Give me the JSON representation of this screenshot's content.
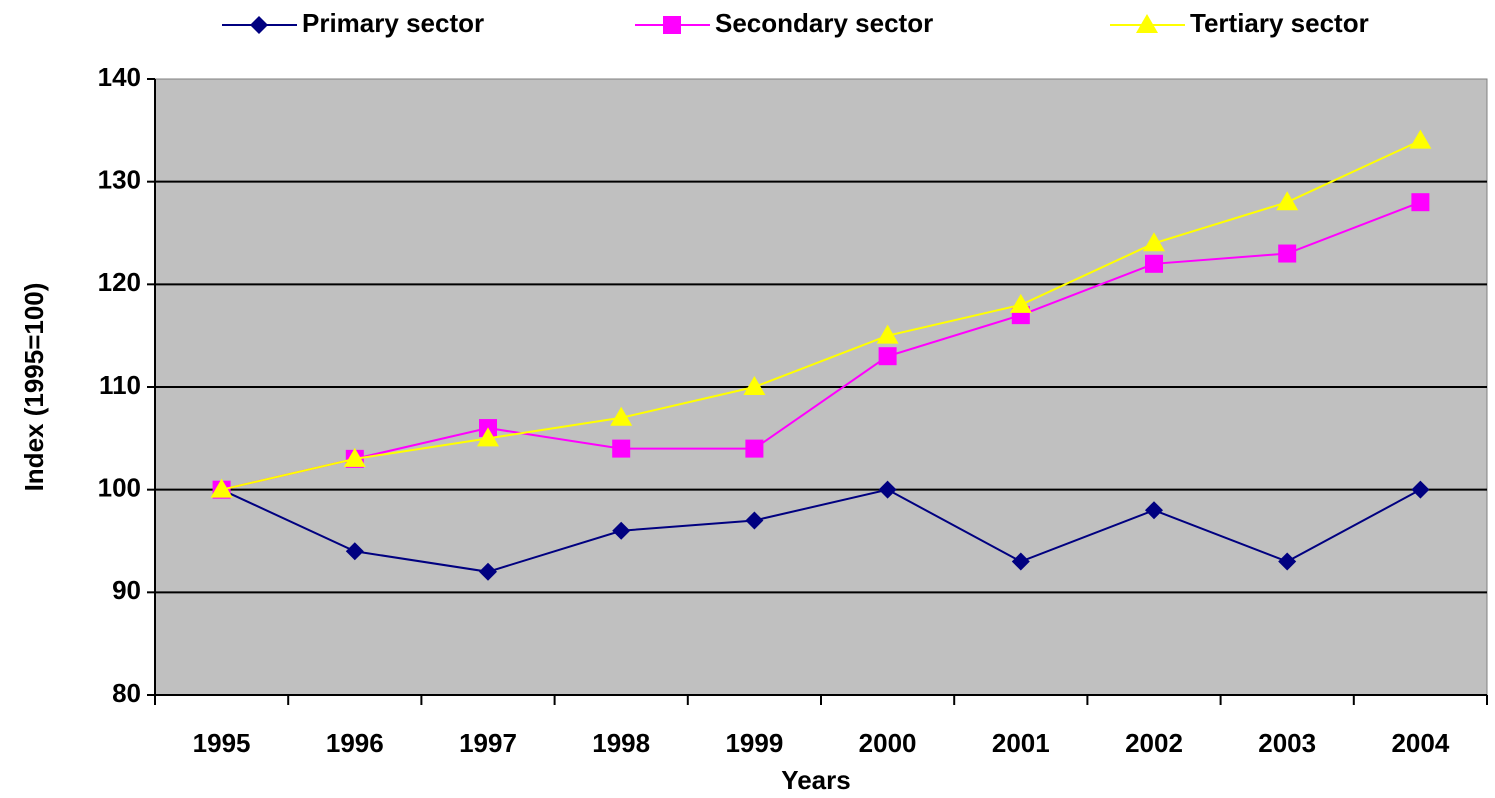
{
  "chart_data": {
    "type": "line",
    "x_label": "Years",
    "y_label": "Index (1995=100)",
    "categories": [
      "1995",
      "1996",
      "1997",
      "1998",
      "1999",
      "2000",
      "2001",
      "2002",
      "2003",
      "2004"
    ],
    "series": [
      {
        "name": "Primary sector",
        "color": "#000080",
        "marker": "diamond",
        "values": [
          100,
          94,
          92,
          96,
          97,
          100,
          93,
          98,
          93,
          100
        ]
      },
      {
        "name": "Secondary sector",
        "color": "#ff00ff",
        "marker": "square",
        "values": [
          100,
          103,
          106,
          104,
          104,
          113,
          117,
          122,
          123,
          128
        ]
      },
      {
        "name": "Tertiary sector",
        "color": "#ffff00",
        "marker": "triangle",
        "values": [
          100,
          103,
          105,
          107,
          110,
          115,
          118,
          124,
          128,
          134
        ]
      }
    ],
    "ylim": [
      80,
      140
    ],
    "yticks": [
      80,
      90,
      100,
      110,
      120,
      130,
      140
    ],
    "grid": true,
    "plot_background": "#c0c0c0",
    "legend": "top"
  }
}
